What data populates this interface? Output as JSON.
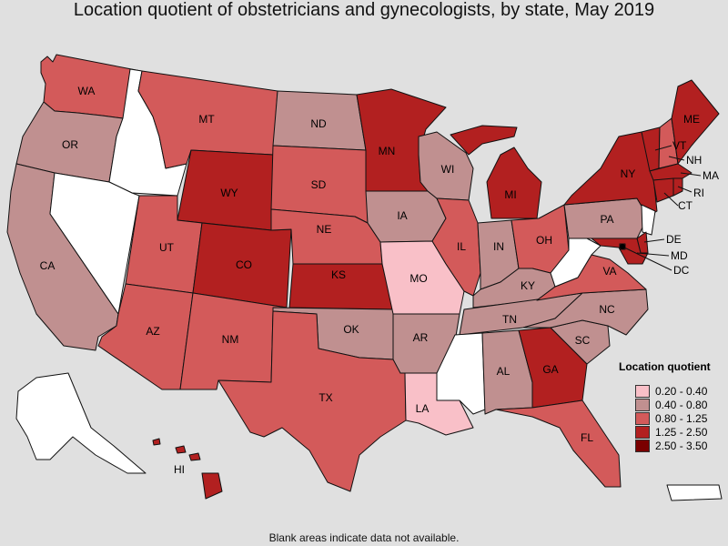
{
  "title": "Location quotient of obstetricians and gynecologists, by state, May 2019",
  "footnote": "Blank areas indicate data not available.",
  "legend": {
    "title": "Location quotient",
    "items": [
      {
        "range": "0.20 - 0.40",
        "color": "#f9c0c8"
      },
      {
        "range": "0.40 - 0.80",
        "color": "#c09090"
      },
      {
        "range": "0.80 - 1.25",
        "color": "#d35a5a"
      },
      {
        "range": "1.25 - 2.50",
        "color": "#b22020"
      },
      {
        "range": "2.50 - 3.50",
        "color": "#7a0000"
      }
    ]
  },
  "states": [
    {
      "abbr": "WA",
      "bin": "0.80 - 1.25"
    },
    {
      "abbr": "OR",
      "bin": "0.40 - 0.80"
    },
    {
      "abbr": "CA",
      "bin": "0.40 - 0.80"
    },
    {
      "abbr": "ID",
      "bin": "no data"
    },
    {
      "abbr": "NV",
      "bin": "no data"
    },
    {
      "abbr": "MT",
      "bin": "0.80 - 1.25"
    },
    {
      "abbr": "WY",
      "bin": "1.25 - 2.50"
    },
    {
      "abbr": "UT",
      "bin": "0.80 - 1.25"
    },
    {
      "abbr": "AZ",
      "bin": "0.80 - 1.25"
    },
    {
      "abbr": "CO",
      "bin": "1.25 - 2.50"
    },
    {
      "abbr": "NM",
      "bin": "0.80 - 1.25"
    },
    {
      "abbr": "ND",
      "bin": "0.40 - 0.80"
    },
    {
      "abbr": "SD",
      "bin": "0.80 - 1.25"
    },
    {
      "abbr": "NE",
      "bin": "0.80 - 1.25"
    },
    {
      "abbr": "KS",
      "bin": "1.25 - 2.50"
    },
    {
      "abbr": "OK",
      "bin": "0.40 - 0.80"
    },
    {
      "abbr": "TX",
      "bin": "0.80 - 1.25"
    },
    {
      "abbr": "MN",
      "bin": "1.25 - 2.50"
    },
    {
      "abbr": "IA",
      "bin": "0.40 - 0.80"
    },
    {
      "abbr": "MO",
      "bin": "0.20 - 0.40"
    },
    {
      "abbr": "AR",
      "bin": "0.40 - 0.80"
    },
    {
      "abbr": "LA",
      "bin": "0.20 - 0.40"
    },
    {
      "abbr": "WI",
      "bin": "0.40 - 0.80"
    },
    {
      "abbr": "IL",
      "bin": "0.80 - 1.25"
    },
    {
      "abbr": "MI",
      "bin": "1.25 - 2.50"
    },
    {
      "abbr": "IN",
      "bin": "0.40 - 0.80"
    },
    {
      "abbr": "OH",
      "bin": "0.80 - 1.25"
    },
    {
      "abbr": "KY",
      "bin": "0.40 - 0.80"
    },
    {
      "abbr": "TN",
      "bin": "0.40 - 0.80"
    },
    {
      "abbr": "MS",
      "bin": "no data"
    },
    {
      "abbr": "AL",
      "bin": "0.40 - 0.80"
    },
    {
      "abbr": "GA",
      "bin": "1.25 - 2.50"
    },
    {
      "abbr": "FL",
      "bin": "0.80 - 1.25"
    },
    {
      "abbr": "SC",
      "bin": "0.40 - 0.80"
    },
    {
      "abbr": "NC",
      "bin": "0.40 - 0.80"
    },
    {
      "abbr": "VA",
      "bin": "0.80 - 1.25"
    },
    {
      "abbr": "WV",
      "bin": "no data"
    },
    {
      "abbr": "PA",
      "bin": "0.40 - 0.80"
    },
    {
      "abbr": "NY",
      "bin": "1.25 - 2.50"
    },
    {
      "abbr": "VT",
      "bin": "1.25 - 2.50"
    },
    {
      "abbr": "NH",
      "bin": "0.80 - 1.25"
    },
    {
      "abbr": "ME",
      "bin": "1.25 - 2.50"
    },
    {
      "abbr": "MA",
      "bin": "1.25 - 2.50"
    },
    {
      "abbr": "CT",
      "bin": "1.25 - 2.50"
    },
    {
      "abbr": "RI",
      "bin": "1.25 - 2.50"
    },
    {
      "abbr": "NJ",
      "bin": "no data"
    },
    {
      "abbr": "DE",
      "bin": "1.25 - 2.50"
    },
    {
      "abbr": "MD",
      "bin": "1.25 - 2.50"
    },
    {
      "abbr": "DC",
      "bin": "2.50 - 3.50"
    },
    {
      "abbr": "AK",
      "bin": "no data"
    },
    {
      "abbr": "HI",
      "bin": "1.25 - 2.50"
    },
    {
      "abbr": "PR",
      "bin": "no data"
    }
  ]
}
